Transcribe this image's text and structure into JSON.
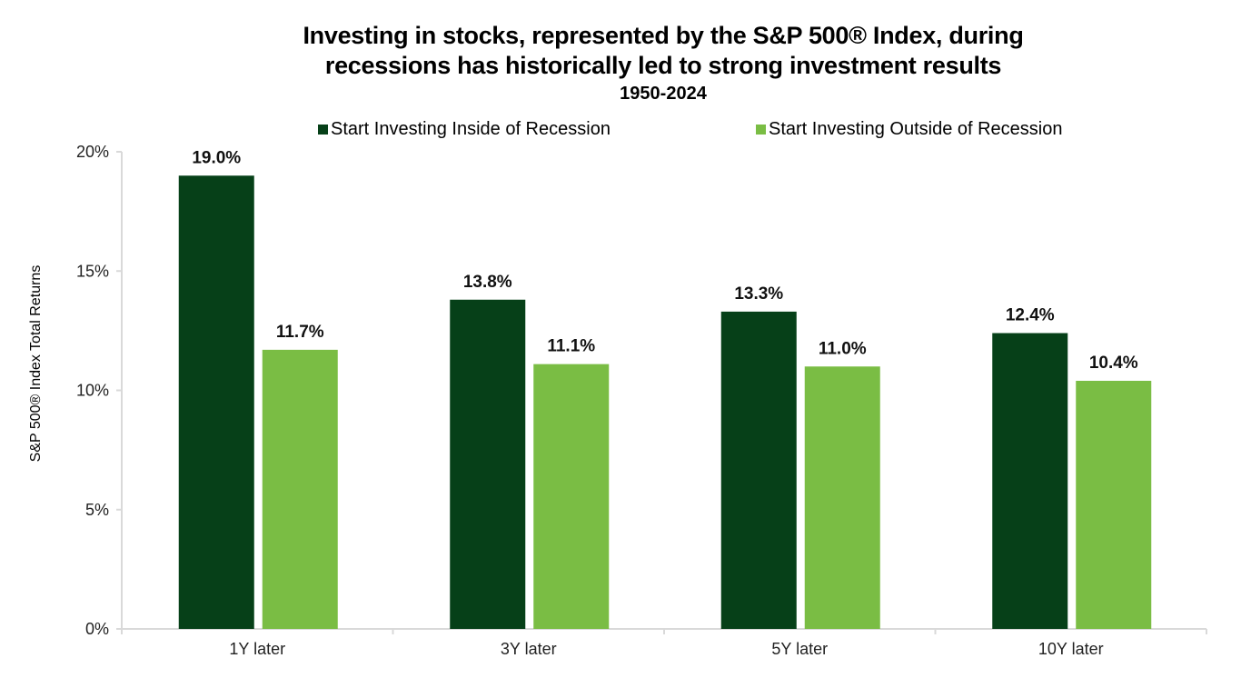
{
  "chart_data": {
    "type": "bar",
    "title_lines": [
      "Investing in stocks, represented by the S&P 500® Index, during",
      "recessions has historically led to strong investment results"
    ],
    "subtitle": "1950-2024",
    "xlabel": "",
    "ylabel": "S&P 500® Index Total  Returns",
    "categories": [
      "1Y later",
      "3Y later",
      "5Y later",
      "10Y later"
    ],
    "series": [
      {
        "name": "Start Investing Inside of Recession",
        "color": "#064018",
        "values": [
          19.0,
          13.8,
          13.3,
          12.4
        ],
        "labels": [
          "19.0%",
          "13.8%",
          "13.3%",
          "12.4%"
        ]
      },
      {
        "name": "Start Investing Outside of Recession",
        "color": "#7abd44",
        "values": [
          11.7,
          11.1,
          11.0,
          10.4
        ],
        "labels": [
          "11.7%",
          "11.1%",
          "11.0%",
          "10.4%"
        ]
      }
    ],
    "ylim": [
      0,
      20
    ],
    "yticks": [
      0,
      5,
      10,
      15,
      20
    ],
    "ytick_labels": [
      "0%",
      "5%",
      "10%",
      "15%",
      "20%"
    ],
    "grid": false,
    "legend_position": "top-center",
    "axis_color": "#d9d9d9"
  }
}
